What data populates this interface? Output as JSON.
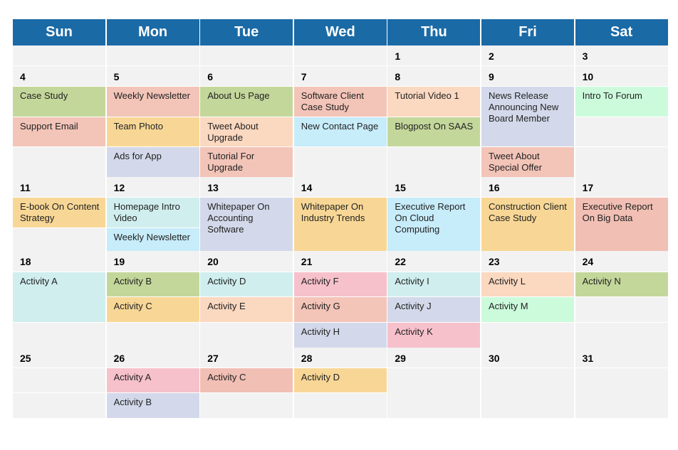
{
  "calendar": {
    "header_color": "#1a6aa6",
    "days_of_week": [
      "Sun",
      "Mon",
      "Tue",
      "Wed",
      "Thu",
      "Fri",
      "Sat"
    ],
    "colors": {
      "green": "#c4d79b",
      "salmon": "#f3c4b8",
      "yellow": "#f8d796",
      "lavender": "#d3d9ea",
      "peach": "#fbd8c0",
      "blue": "#c7ecfa",
      "mint": "#ccfbdc",
      "cyan": "#d0eeee",
      "pink": "#f7c1cc",
      "rose": "#f1bfb4"
    },
    "weeks": [
      {
        "days": [
          {
            "date": "",
            "events": []
          },
          {
            "date": "",
            "events": []
          },
          {
            "date": "",
            "events": []
          },
          {
            "date": "",
            "events": []
          },
          {
            "date": "1",
            "events": []
          },
          {
            "date": "2",
            "events": []
          },
          {
            "date": "3",
            "events": []
          }
        ]
      },
      {
        "days": [
          {
            "date": "4",
            "events": [
              {
                "text": "Case Study",
                "color": "green",
                "slot": 0,
                "span": 1
              },
              {
                "text": "Support Email",
                "color": "salmon",
                "slot": 1,
                "span": 1
              }
            ]
          },
          {
            "date": "5",
            "events": [
              {
                "text": "Weekly Newsletter",
                "color": "salmon",
                "slot": 0,
                "span": 1
              },
              {
                "text": "Team Photo",
                "color": "yellow",
                "slot": 1,
                "span": 1
              },
              {
                "text": "Ads for App",
                "color": "lavender",
                "slot": 2,
                "span": 1
              }
            ]
          },
          {
            "date": "6",
            "events": [
              {
                "text": "About Us Page",
                "color": "green",
                "slot": 0,
                "span": 1
              },
              {
                "text": "Tweet About Upgrade",
                "color": "peach",
                "slot": 1,
                "span": 1
              },
              {
                "text": "Tutorial For Upgrade",
                "color": "salmon",
                "slot": 2,
                "span": 1
              }
            ]
          },
          {
            "date": "7",
            "events": [
              {
                "text": "Software Client Case Study",
                "color": "salmon",
                "slot": 0,
                "span": 1
              },
              {
                "text": "New Contact Page",
                "color": "blue",
                "slot": 1,
                "span": 1
              }
            ]
          },
          {
            "date": "8",
            "events": [
              {
                "text": "Tutorial Video 1",
                "color": "peach",
                "slot": 0,
                "span": 1
              },
              {
                "text": "Blogpost On SAAS",
                "color": "green",
                "slot": 1,
                "span": 1
              }
            ]
          },
          {
            "date": "9",
            "events": [
              {
                "text": "News Release Announcing New Board Member",
                "color": "lavender",
                "slot": 0,
                "span": 2
              },
              {
                "text": "Tweet About Special Offer",
                "color": "salmon",
                "slot": 2,
                "span": 1
              }
            ]
          },
          {
            "date": "10",
            "events": [
              {
                "text": "Intro To Forum",
                "color": "mint",
                "slot": 0,
                "span": 1
              }
            ]
          }
        ]
      },
      {
        "days": [
          {
            "date": "11",
            "events": [
              {
                "text": "E-book On Content Strategy",
                "color": "yellow",
                "slot": 0,
                "span": 1
              }
            ]
          },
          {
            "date": "12",
            "events": [
              {
                "text": "Homepage Intro Video",
                "color": "cyan",
                "slot": 0,
                "span": 1
              },
              {
                "text": "Weekly Newsletter",
                "color": "blue",
                "slot": 1,
                "span": 1
              }
            ]
          },
          {
            "date": "13",
            "events": [
              {
                "text": "Whitepaper On Accounting Software",
                "color": "lavender",
                "slot": 0,
                "span": 2
              }
            ]
          },
          {
            "date": "14",
            "events": [
              {
                "text": "Whitepaper On Industry Trends",
                "color": "yellow",
                "slot": 0,
                "span": 2
              }
            ]
          },
          {
            "date": "15",
            "events": [
              {
                "text": "Executive Report On Cloud Computing",
                "color": "blue",
                "slot": 0,
                "span": 2
              }
            ]
          },
          {
            "date": "16",
            "events": [
              {
                "text": "Construction Client Case Study",
                "color": "yellow",
                "slot": 0,
                "span": 2
              }
            ]
          },
          {
            "date": "17",
            "events": [
              {
                "text": "Executive Report On Big Data",
                "color": "rose",
                "slot": 0,
                "span": 2
              }
            ]
          }
        ]
      },
      {
        "days": [
          {
            "date": "18",
            "events": [
              {
                "text": "Activity A",
                "color": "cyan",
                "slot": 0,
                "span": 2
              }
            ]
          },
          {
            "date": "19",
            "events": [
              {
                "text": "Activity B",
                "color": "green",
                "slot": 0,
                "span": 1
              },
              {
                "text": "Activity C",
                "color": "yellow",
                "slot": 1,
                "span": 1
              }
            ]
          },
          {
            "date": "20",
            "events": [
              {
                "text": "Activity D",
                "color": "cyan",
                "slot": 0,
                "span": 1
              },
              {
                "text": "Activity E",
                "color": "peach",
                "slot": 1,
                "span": 1
              }
            ]
          },
          {
            "date": "21",
            "events": [
              {
                "text": "Activity F",
                "color": "pink",
                "slot": 0,
                "span": 1
              },
              {
                "text": "Activity G",
                "color": "salmon",
                "slot": 1,
                "span": 1
              },
              {
                "text": "Activity H",
                "color": "lavender",
                "slot": 2,
                "span": 1
              }
            ]
          },
          {
            "date": "22",
            "events": [
              {
                "text": "Activity I",
                "color": "cyan",
                "slot": 0,
                "span": 1
              },
              {
                "text": "Activity J",
                "color": "lavender",
                "slot": 1,
                "span": 1
              },
              {
                "text": "Activity K",
                "color": "pink",
                "slot": 2,
                "span": 1
              }
            ]
          },
          {
            "date": "23",
            "events": [
              {
                "text": "Activity L",
                "color": "peach",
                "slot": 0,
                "span": 1
              },
              {
                "text": "Activity M",
                "color": "mint",
                "slot": 1,
                "span": 1
              }
            ]
          },
          {
            "date": "24",
            "events": [
              {
                "text": "Activity N",
                "color": "green",
                "slot": 0,
                "span": 1
              }
            ]
          }
        ]
      },
      {
        "days": [
          {
            "date": "25",
            "events": []
          },
          {
            "date": "26",
            "events": [
              {
                "text": "Activity A",
                "color": "pink",
                "slot": 0,
                "span": 1
              },
              {
                "text": "Activity B",
                "color": "lavender",
                "slot": 1,
                "span": 1
              }
            ]
          },
          {
            "date": "27",
            "events": [
              {
                "text": "Activity C",
                "color": "rose",
                "slot": 0,
                "span": 1
              }
            ]
          },
          {
            "date": "28",
            "events": [
              {
                "text": "Activity D",
                "color": "yellow",
                "slot": 0,
                "span": 1
              }
            ]
          },
          {
            "date": "29",
            "events": []
          },
          {
            "date": "30",
            "events": []
          },
          {
            "date": "31",
            "events": []
          }
        ]
      }
    ]
  }
}
